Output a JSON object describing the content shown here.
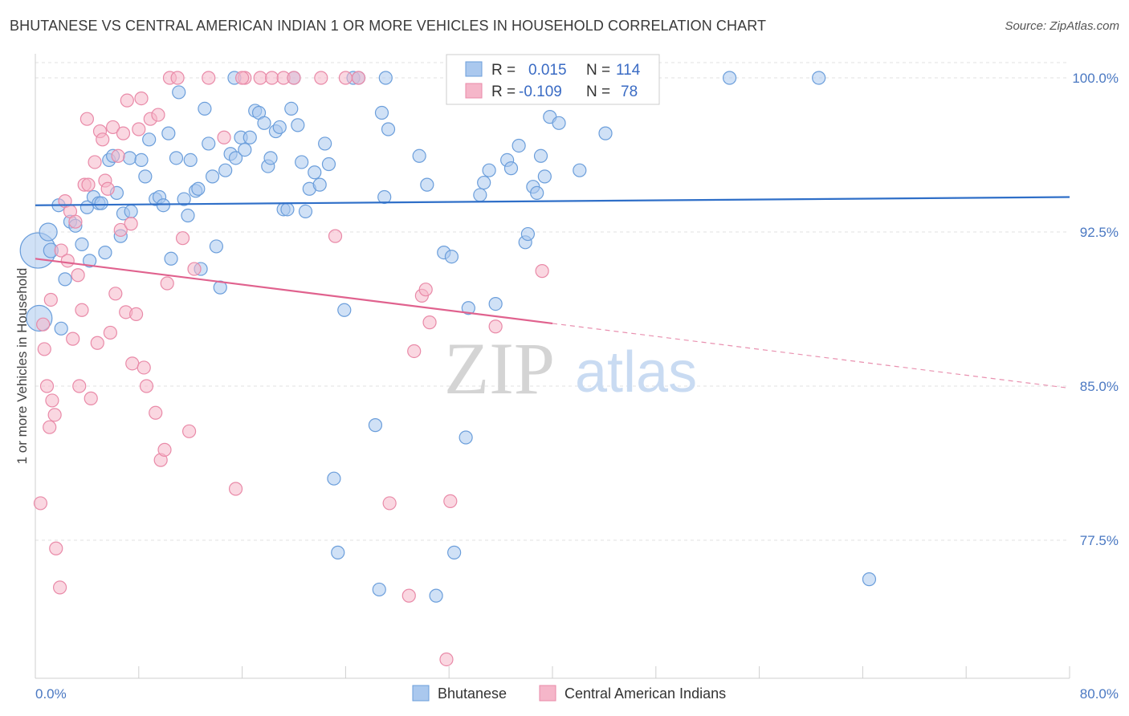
{
  "title": "BHUTANESE VS CENTRAL AMERICAN INDIAN 1 OR MORE VEHICLES IN HOUSEHOLD CORRELATION CHART",
  "source": "Source: ZipAtlas.com",
  "watermark": {
    "zip": "ZIP",
    "atlas": "atlas"
  },
  "colors": {
    "blue_fill": "#aac8ee",
    "blue_stroke": "#6b9edb",
    "blue_line": "#2f6fc8",
    "pink_fill": "#f5b6c9",
    "pink_stroke": "#e98aa8",
    "pink_line": "#e0628e",
    "grid": "#e2e2e2",
    "tick_text": "#4a78c2"
  },
  "legend": {
    "r_label": "R =",
    "n_label": "N =",
    "rows": [
      {
        "r_value": "0.015",
        "n_value": "114",
        "color": "#aac8ee"
      },
      {
        "r_value": "-0.109",
        "n_value": "78",
        "color": "#f5b6c9"
      }
    ]
  },
  "bottom_legend": [
    "Bhutanese",
    "Central American Indians"
  ],
  "chart_data": {
    "type": "scatter",
    "title": "BHUTANESE VS CENTRAL AMERICAN INDIAN 1 OR MORE VEHICLES IN HOUSEHOLD CORRELATION CHART",
    "xlabel": "",
    "ylabel": "1 or more Vehicles in Household",
    "xlim": [
      0,
      80
    ],
    "ylim": [
      70.5,
      101.5
    ],
    "x_tick_labels": [
      "0.0%",
      "80.0%"
    ],
    "y_ticks": [
      100.0,
      92.5,
      85.0,
      77.5
    ],
    "y_tick_labels": [
      "100.0%",
      "92.5%",
      "85.0%",
      "77.5%"
    ],
    "grid": true,
    "legend_position": "top-center",
    "series": [
      {
        "name": "Bhutanese",
        "color": "#aac8ee",
        "regression": {
          "r": 0.015,
          "n": 114,
          "x": [
            0,
            80
          ],
          "y": [
            93.8,
            94.2
          ]
        },
        "points": [
          [
            0.2,
            91.6,
            22
          ],
          [
            0.3,
            88.3,
            16
          ],
          [
            1.0,
            92.5,
            11
          ],
          [
            1.2,
            91.6,
            9
          ],
          [
            1.8,
            93.8,
            8
          ],
          [
            2.0,
            87.8,
            8
          ],
          [
            2.3,
            90.2,
            8
          ],
          [
            2.7,
            93.0,
            8
          ],
          [
            3.1,
            92.8,
            8
          ],
          [
            3.6,
            91.9,
            8
          ],
          [
            4.0,
            93.7,
            8
          ],
          [
            4.2,
            91.1,
            8
          ],
          [
            4.5,
            94.2,
            8
          ],
          [
            4.9,
            93.9,
            8
          ],
          [
            5.1,
            93.9,
            8
          ],
          [
            5.4,
            91.5,
            8
          ],
          [
            5.7,
            96.0,
            8
          ],
          [
            6.0,
            96.2,
            8
          ],
          [
            6.3,
            94.4,
            8
          ],
          [
            6.6,
            92.3,
            8
          ],
          [
            6.8,
            93.4,
            8
          ],
          [
            7.4,
            93.5,
            8
          ],
          [
            7.3,
            96.1,
            8
          ],
          [
            8.2,
            96.0,
            8
          ],
          [
            8.5,
            95.2,
            8
          ],
          [
            8.8,
            97.0,
            8
          ],
          [
            9.3,
            94.1,
            8
          ],
          [
            9.6,
            94.2,
            8
          ],
          [
            9.9,
            93.8,
            8
          ],
          [
            10.3,
            97.3,
            8
          ],
          [
            10.5,
            91.2,
            8
          ],
          [
            10.9,
            96.1,
            8
          ],
          [
            11.1,
            99.3,
            8
          ],
          [
            11.5,
            94.1,
            8
          ],
          [
            11.8,
            93.3,
            8
          ],
          [
            12.0,
            96.0,
            8
          ],
          [
            12.4,
            94.5,
            8
          ],
          [
            12.6,
            94.6,
            8
          ],
          [
            12.8,
            90.7,
            8
          ],
          [
            13.1,
            98.5,
            8
          ],
          [
            13.4,
            96.8,
            8
          ],
          [
            13.7,
            95.2,
            8
          ],
          [
            14.0,
            91.8,
            8
          ],
          [
            14.3,
            89.8,
            8
          ],
          [
            14.7,
            95.5,
            8
          ],
          [
            15.1,
            96.3,
            8
          ],
          [
            15.5,
            96.1,
            8
          ],
          [
            15.9,
            97.1,
            8
          ],
          [
            16.2,
            96.5,
            8
          ],
          [
            16.6,
            97.1,
            8
          ],
          [
            17.0,
            98.4,
            8
          ],
          [
            17.3,
            98.3,
            8
          ],
          [
            17.7,
            97.8,
            8
          ],
          [
            18.0,
            95.7,
            8
          ],
          [
            18.2,
            96.1,
            8
          ],
          [
            18.6,
            97.4,
            8
          ],
          [
            18.9,
            97.6,
            8
          ],
          [
            19.2,
            93.6,
            8
          ],
          [
            19.5,
            93.6,
            8
          ],
          [
            19.8,
            98.5,
            8
          ],
          [
            20.3,
            97.7,
            8
          ],
          [
            20.6,
            95.9,
            8
          ],
          [
            20.9,
            93.5,
            8
          ],
          [
            21.2,
            94.6,
            8
          ],
          [
            21.6,
            95.4,
            8
          ],
          [
            22.0,
            94.8,
            8
          ],
          [
            22.4,
            96.8,
            8
          ],
          [
            22.7,
            95.8,
            8
          ],
          [
            23.1,
            80.5,
            8
          ],
          [
            23.4,
            76.9,
            8
          ],
          [
            23.9,
            88.7,
            8
          ],
          [
            24.6,
            100.0,
            8
          ],
          [
            25.0,
            100.0,
            8
          ],
          [
            26.3,
            83.1,
            8
          ],
          [
            26.6,
            75.1,
            8
          ],
          [
            26.8,
            98.3,
            8
          ],
          [
            27.0,
            94.2,
            8
          ],
          [
            27.3,
            97.5,
            8
          ],
          [
            29.7,
            96.2,
            8
          ],
          [
            30.3,
            94.8,
            8
          ],
          [
            31.0,
            74.8,
            8
          ],
          [
            31.6,
            91.5,
            8
          ],
          [
            32.2,
            91.3,
            8
          ],
          [
            32.4,
            76.9,
            8
          ],
          [
            33.3,
            82.5,
            8
          ],
          [
            33.5,
            88.8,
            8
          ],
          [
            34.4,
            94.3,
            8
          ],
          [
            34.7,
            94.9,
            8
          ],
          [
            35.1,
            95.5,
            8
          ],
          [
            35.6,
            89.0,
            8
          ],
          [
            36.5,
            96.0,
            8
          ],
          [
            36.8,
            95.6,
            8
          ],
          [
            37.4,
            96.7,
            8
          ],
          [
            37.9,
            92.0,
            8
          ],
          [
            38.1,
            92.4,
            8
          ],
          [
            38.5,
            94.7,
            8
          ],
          [
            38.8,
            94.4,
            8
          ],
          [
            39.1,
            96.2,
            8
          ],
          [
            39.4,
            95.2,
            8
          ],
          [
            39.8,
            98.1,
            8
          ],
          [
            40.5,
            97.8,
            8
          ],
          [
            42.1,
            95.5,
            8
          ],
          [
            44.1,
            97.3,
            8
          ],
          [
            53.7,
            100.0,
            8
          ],
          [
            60.6,
            100.0,
            8
          ],
          [
            64.5,
            75.6,
            8
          ],
          [
            15.4,
            100.0,
            8
          ],
          [
            20.0,
            100.0,
            8
          ],
          [
            27.1,
            100.0,
            8
          ],
          [
            34.1,
            100.0,
            8
          ],
          [
            44.0,
            100.0,
            8
          ],
          [
            45.0,
            100.0,
            8
          ],
          [
            46.0,
            100.0,
            8
          ],
          [
            47.0,
            100.0,
            8
          ]
        ]
      },
      {
        "name": "Central American Indians",
        "color": "#f5b6c9",
        "regression": {
          "r": -0.109,
          "n": 78,
          "x": [
            0,
            80
          ],
          "y": [
            91.2,
            84.9
          ],
          "solid_to_x": 40
        },
        "points": [
          [
            0.4,
            79.3,
            8
          ],
          [
            0.6,
            88.0,
            8
          ],
          [
            0.7,
            86.8,
            8
          ],
          [
            0.9,
            85.0,
            8
          ],
          [
            1.1,
            83.0,
            8
          ],
          [
            1.2,
            89.2,
            8
          ],
          [
            1.3,
            84.3,
            8
          ],
          [
            1.5,
            83.6,
            8
          ],
          [
            1.6,
            77.1,
            8
          ],
          [
            1.9,
            75.2,
            8
          ],
          [
            2.0,
            91.6,
            8
          ],
          [
            2.3,
            94.0,
            8
          ],
          [
            2.5,
            91.1,
            8
          ],
          [
            2.7,
            93.5,
            8
          ],
          [
            2.9,
            87.3,
            8
          ],
          [
            3.1,
            93.0,
            8
          ],
          [
            3.3,
            90.4,
            8
          ],
          [
            3.4,
            85.0,
            8
          ],
          [
            3.6,
            88.7,
            8
          ],
          [
            3.8,
            94.8,
            8
          ],
          [
            4.0,
            98.0,
            8
          ],
          [
            4.1,
            94.8,
            8
          ],
          [
            4.3,
            84.4,
            8
          ],
          [
            4.6,
            95.9,
            8
          ],
          [
            4.8,
            87.1,
            8
          ],
          [
            5.0,
            97.4,
            8
          ],
          [
            5.2,
            97.0,
            8
          ],
          [
            5.4,
            95.0,
            8
          ],
          [
            5.6,
            94.6,
            8
          ],
          [
            5.8,
            87.6,
            8
          ],
          [
            6.0,
            97.6,
            8
          ],
          [
            6.2,
            89.5,
            8
          ],
          [
            6.4,
            96.2,
            8
          ],
          [
            6.6,
            92.6,
            8
          ],
          [
            6.8,
            97.3,
            8
          ],
          [
            7.0,
            88.6,
            8
          ],
          [
            7.1,
            98.9,
            8
          ],
          [
            7.4,
            92.9,
            8
          ],
          [
            7.5,
            86.1,
            8
          ],
          [
            7.8,
            88.5,
            8
          ],
          [
            8.0,
            97.5,
            8
          ],
          [
            8.2,
            99.0,
            8
          ],
          [
            8.4,
            85.9,
            8
          ],
          [
            8.6,
            85.0,
            8
          ],
          [
            8.9,
            98.0,
            8
          ],
          [
            9.3,
            83.7,
            8
          ],
          [
            9.5,
            98.2,
            8
          ],
          [
            9.7,
            81.4,
            8
          ],
          [
            10.0,
            81.9,
            8
          ],
          [
            10.2,
            90.0,
            8
          ],
          [
            10.4,
            100.0,
            8
          ],
          [
            11.0,
            100.0,
            8
          ],
          [
            11.4,
            92.2,
            8
          ],
          [
            11.9,
            82.8,
            8
          ],
          [
            12.3,
            90.7,
            8
          ],
          [
            13.4,
            100.0,
            8
          ],
          [
            14.6,
            97.1,
            8
          ],
          [
            15.5,
            80.0,
            8
          ],
          [
            16.2,
            100.0,
            8
          ],
          [
            17.4,
            100.0,
            8
          ],
          [
            18.3,
            100.0,
            8
          ],
          [
            19.2,
            100.0,
            8
          ],
          [
            22.1,
            100.0,
            8
          ],
          [
            23.2,
            92.3,
            8
          ],
          [
            27.4,
            79.3,
            8
          ],
          [
            28.9,
            74.8,
            8
          ],
          [
            29.3,
            86.7,
            8
          ],
          [
            29.9,
            89.4,
            8
          ],
          [
            30.2,
            89.7,
            8
          ],
          [
            30.5,
            88.1,
            8
          ],
          [
            31.8,
            71.7,
            8
          ],
          [
            32.1,
            79.4,
            8
          ],
          [
            35.6,
            87.9,
            8
          ],
          [
            39.2,
            90.6,
            8
          ],
          [
            16.0,
            100.0,
            8
          ],
          [
            20.0,
            100.0,
            8
          ],
          [
            24.0,
            100.0,
            8
          ],
          [
            25.0,
            100.0,
            8
          ]
        ]
      }
    ]
  }
}
